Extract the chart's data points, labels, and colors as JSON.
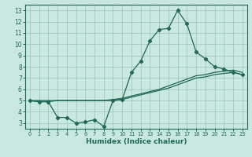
{
  "xlabel": "Humidex (Indice chaleur)",
  "bg_color": "#c8e8e0",
  "grid_color": "#a0c8c0",
  "line_color": "#206858",
  "xlim": [
    -0.5,
    23.5
  ],
  "ylim": [
    2.5,
    13.5
  ],
  "xticks": [
    0,
    1,
    2,
    3,
    4,
    5,
    6,
    7,
    8,
    9,
    10,
    11,
    12,
    13,
    14,
    15,
    16,
    17,
    18,
    19,
    20,
    21,
    22,
    23
  ],
  "yticks": [
    3,
    4,
    5,
    6,
    7,
    8,
    9,
    10,
    11,
    12,
    13
  ],
  "line_upper_x": [
    0,
    1,
    2,
    3,
    4,
    5,
    6,
    7,
    8,
    9,
    10,
    11,
    12,
    13,
    14,
    15,
    16,
    17,
    18,
    19,
    20,
    21,
    22,
    23
  ],
  "line_upper_y": [
    5.0,
    5.0,
    5.0,
    5.0,
    5.0,
    5.0,
    5.0,
    5.0,
    5.0,
    5.1,
    5.2,
    5.4,
    5.6,
    5.8,
    6.0,
    6.3,
    6.6,
    6.9,
    7.2,
    7.3,
    7.5,
    7.6,
    7.7,
    7.5
  ],
  "line_lower_x": [
    0,
    1,
    2,
    3,
    4,
    5,
    6,
    7,
    8,
    9,
    10,
    11,
    12,
    13,
    14,
    15,
    16,
    17,
    18,
    19,
    20,
    21,
    22,
    23
  ],
  "line_lower_y": [
    5.0,
    4.9,
    4.9,
    5.0,
    5.0,
    5.0,
    5.0,
    5.0,
    5.0,
    5.0,
    5.1,
    5.3,
    5.5,
    5.7,
    5.9,
    6.1,
    6.4,
    6.7,
    7.0,
    7.1,
    7.3,
    7.4,
    7.5,
    7.3
  ],
  "main_x": [
    0,
    1,
    2,
    3,
    4,
    5,
    6,
    7,
    8,
    9,
    10,
    11,
    12,
    13,
    14,
    15,
    16,
    17,
    18,
    19,
    20,
    21,
    22,
    23
  ],
  "main_y": [
    5.0,
    4.9,
    4.9,
    3.5,
    3.5,
    3.0,
    3.1,
    3.3,
    2.7,
    5.0,
    5.1,
    7.5,
    8.5,
    10.3,
    11.3,
    11.4,
    13.0,
    11.8,
    9.3,
    8.7,
    8.0,
    7.8,
    7.5,
    7.3
  ]
}
